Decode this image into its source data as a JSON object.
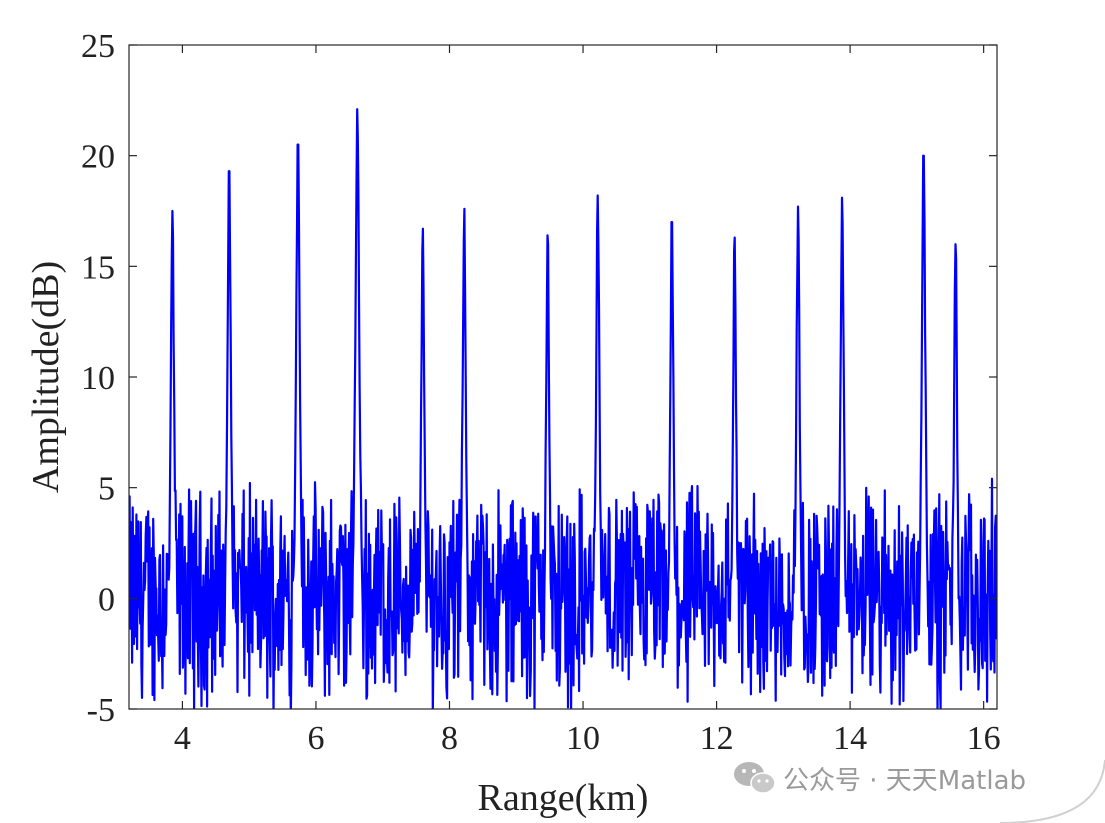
{
  "chart_data": {
    "type": "line",
    "xlabel": "Range(km)",
    "ylabel": "Amplitude(dB)",
    "xlim": [
      3.2,
      16.2
    ],
    "ylim": [
      -5,
      25
    ],
    "x_ticks": [
      "4",
      "6",
      "8",
      "10",
      "12",
      "14",
      "16"
    ],
    "y_ticks": [
      "-5",
      "0",
      "5",
      "10",
      "15",
      "20",
      "25"
    ],
    "grid": false,
    "series_color": "#0000FF",
    "series": [
      {
        "peaks": [
          {
            "x": 3.85,
            "y": 17.5
          },
          {
            "x": 4.7,
            "y": 19.3
          },
          {
            "x": 5.73,
            "y": 20.5
          },
          {
            "x": 6.62,
            "y": 22.1
          },
          {
            "x": 7.6,
            "y": 16.7
          },
          {
            "x": 8.22,
            "y": 17.6
          },
          {
            "x": 9.47,
            "y": 16.4
          },
          {
            "x": 10.22,
            "y": 18.2
          },
          {
            "x": 11.33,
            "y": 17.0
          },
          {
            "x": 12.27,
            "y": 16.3
          },
          {
            "x": 13.22,
            "y": 17.7
          },
          {
            "x": 13.88,
            "y": 18.1
          },
          {
            "x": 15.1,
            "y": 20.0
          },
          {
            "x": 15.58,
            "y": 16.0
          }
        ],
        "noise_floor": {
          "mean": 0.0,
          "spread": [
            -5,
            4
          ]
        }
      }
    ]
  },
  "watermark": {
    "text": "公众号 · 天天Matlab",
    "icon": "wechat-icon"
  }
}
